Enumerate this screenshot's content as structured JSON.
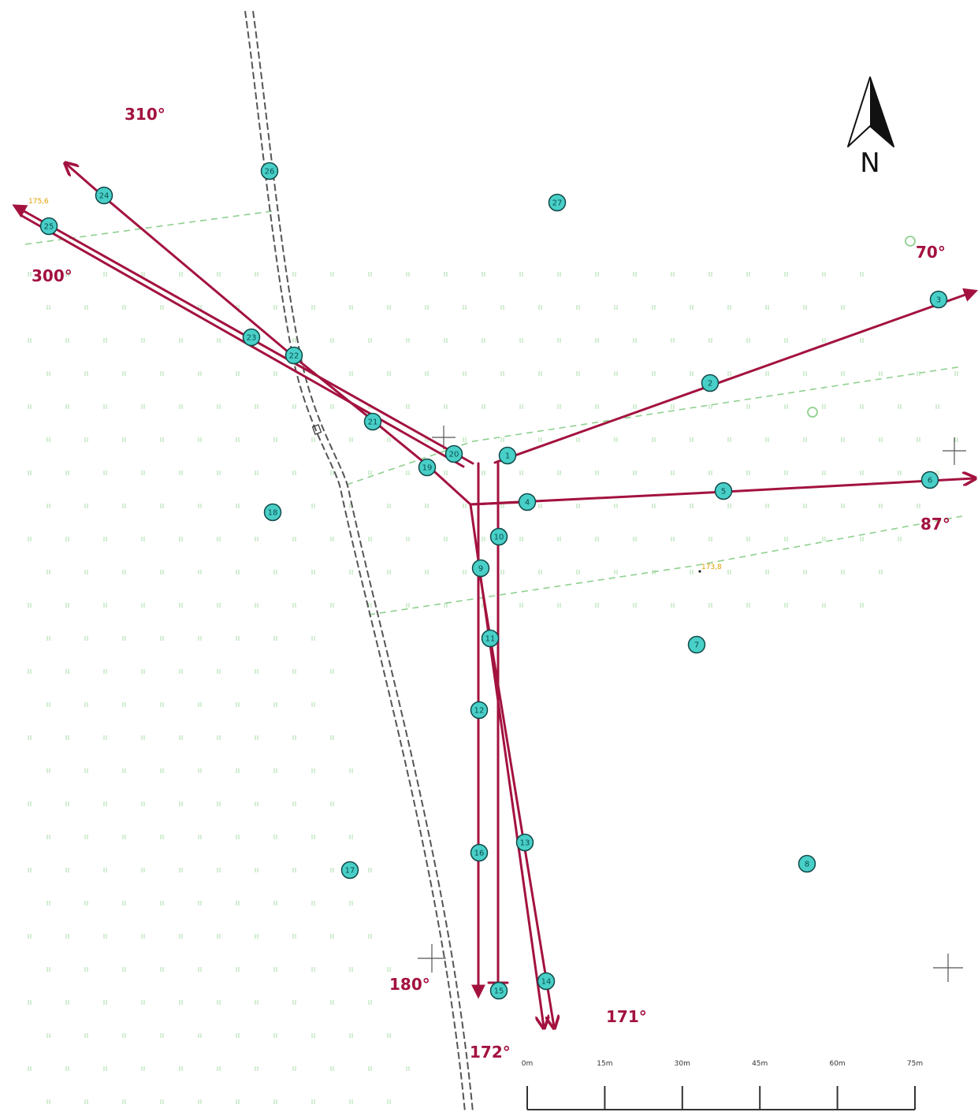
{
  "colors": {
    "line": "#a3123f",
    "point_fill": "#48cfc8",
    "point_stroke": "#114848",
    "contour": "#8fd08f",
    "marsh": "#a9dca9",
    "track": "#555555",
    "elevation": "#e0a000"
  },
  "north_label": "N",
  "azimuths": [
    {
      "id": "az-310",
      "label": "310°"
    },
    {
      "id": "az-300",
      "label": "300°"
    },
    {
      "id": "az-70",
      "label": "70°"
    },
    {
      "id": "az-87",
      "label": "87°"
    },
    {
      "id": "az-180",
      "label": "180°"
    },
    {
      "id": "az-172",
      "label": "172°"
    },
    {
      "id": "az-171",
      "label": "171°"
    }
  ],
  "elevations": [
    "175,6",
    "173,8"
  ],
  "points": [
    "1",
    "2",
    "3",
    "4",
    "5",
    "6",
    "7",
    "8",
    "9",
    "10",
    "11",
    "12",
    "13",
    "14",
    "15",
    "16",
    "17",
    "18",
    "19",
    "20",
    "21",
    "22",
    "23",
    "24",
    "25",
    "26",
    "27"
  ],
  "scale_bar": {
    "ticks": [
      "0m",
      "15m",
      "30m",
      "45m",
      "60m",
      "75m"
    ]
  },
  "icons": [
    "north-arrow-icon",
    "survey-cross-icon",
    "marsh-symbol-icon"
  ]
}
